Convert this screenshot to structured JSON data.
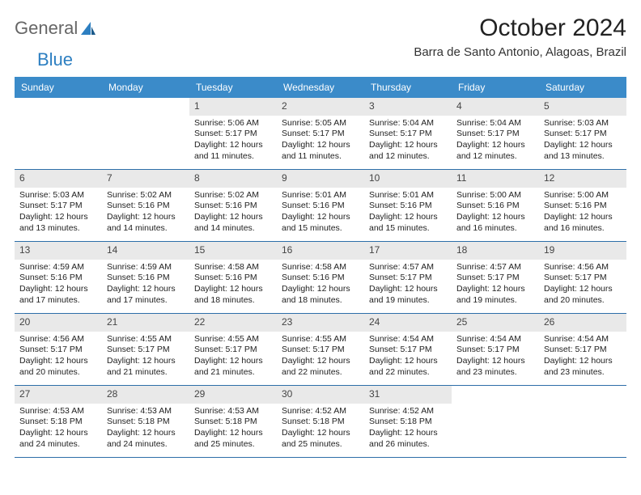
{
  "brand": {
    "part1": "General",
    "part2": "Blue"
  },
  "title": "October 2024",
  "subtitle": "Barra de Santo Antonio, Alagoas, Brazil",
  "colors": {
    "header_bg": "#3b8bc9",
    "header_text": "#ffffff",
    "daynum_bg": "#e9e9e9",
    "daynum_text": "#444444",
    "week_border": "#2d6ea8",
    "logo_gray": "#666666",
    "logo_blue": "#2d7fc1"
  },
  "dow": [
    "Sunday",
    "Monday",
    "Tuesday",
    "Wednesday",
    "Thursday",
    "Friday",
    "Saturday"
  ],
  "weeks": [
    [
      null,
      null,
      {
        "n": "1",
        "sr": "5:06 AM",
        "ss": "5:17 PM",
        "dl": "12 hours and 11 minutes."
      },
      {
        "n": "2",
        "sr": "5:05 AM",
        "ss": "5:17 PM",
        "dl": "12 hours and 11 minutes."
      },
      {
        "n": "3",
        "sr": "5:04 AM",
        "ss": "5:17 PM",
        "dl": "12 hours and 12 minutes."
      },
      {
        "n": "4",
        "sr": "5:04 AM",
        "ss": "5:17 PM",
        "dl": "12 hours and 12 minutes."
      },
      {
        "n": "5",
        "sr": "5:03 AM",
        "ss": "5:17 PM",
        "dl": "12 hours and 13 minutes."
      }
    ],
    [
      {
        "n": "6",
        "sr": "5:03 AM",
        "ss": "5:17 PM",
        "dl": "12 hours and 13 minutes."
      },
      {
        "n": "7",
        "sr": "5:02 AM",
        "ss": "5:16 PM",
        "dl": "12 hours and 14 minutes."
      },
      {
        "n": "8",
        "sr": "5:02 AM",
        "ss": "5:16 PM",
        "dl": "12 hours and 14 minutes."
      },
      {
        "n": "9",
        "sr": "5:01 AM",
        "ss": "5:16 PM",
        "dl": "12 hours and 15 minutes."
      },
      {
        "n": "10",
        "sr": "5:01 AM",
        "ss": "5:16 PM",
        "dl": "12 hours and 15 minutes."
      },
      {
        "n": "11",
        "sr": "5:00 AM",
        "ss": "5:16 PM",
        "dl": "12 hours and 16 minutes."
      },
      {
        "n": "12",
        "sr": "5:00 AM",
        "ss": "5:16 PM",
        "dl": "12 hours and 16 minutes."
      }
    ],
    [
      {
        "n": "13",
        "sr": "4:59 AM",
        "ss": "5:16 PM",
        "dl": "12 hours and 17 minutes."
      },
      {
        "n": "14",
        "sr": "4:59 AM",
        "ss": "5:16 PM",
        "dl": "12 hours and 17 minutes."
      },
      {
        "n": "15",
        "sr": "4:58 AM",
        "ss": "5:16 PM",
        "dl": "12 hours and 18 minutes."
      },
      {
        "n": "16",
        "sr": "4:58 AM",
        "ss": "5:16 PM",
        "dl": "12 hours and 18 minutes."
      },
      {
        "n": "17",
        "sr": "4:57 AM",
        "ss": "5:17 PM",
        "dl": "12 hours and 19 minutes."
      },
      {
        "n": "18",
        "sr": "4:57 AM",
        "ss": "5:17 PM",
        "dl": "12 hours and 19 minutes."
      },
      {
        "n": "19",
        "sr": "4:56 AM",
        "ss": "5:17 PM",
        "dl": "12 hours and 20 minutes."
      }
    ],
    [
      {
        "n": "20",
        "sr": "4:56 AM",
        "ss": "5:17 PM",
        "dl": "12 hours and 20 minutes."
      },
      {
        "n": "21",
        "sr": "4:55 AM",
        "ss": "5:17 PM",
        "dl": "12 hours and 21 minutes."
      },
      {
        "n": "22",
        "sr": "4:55 AM",
        "ss": "5:17 PM",
        "dl": "12 hours and 21 minutes."
      },
      {
        "n": "23",
        "sr": "4:55 AM",
        "ss": "5:17 PM",
        "dl": "12 hours and 22 minutes."
      },
      {
        "n": "24",
        "sr": "4:54 AM",
        "ss": "5:17 PM",
        "dl": "12 hours and 22 minutes."
      },
      {
        "n": "25",
        "sr": "4:54 AM",
        "ss": "5:17 PM",
        "dl": "12 hours and 23 minutes."
      },
      {
        "n": "26",
        "sr": "4:54 AM",
        "ss": "5:17 PM",
        "dl": "12 hours and 23 minutes."
      }
    ],
    [
      {
        "n": "27",
        "sr": "4:53 AM",
        "ss": "5:18 PM",
        "dl": "12 hours and 24 minutes."
      },
      {
        "n": "28",
        "sr": "4:53 AM",
        "ss": "5:18 PM",
        "dl": "12 hours and 24 minutes."
      },
      {
        "n": "29",
        "sr": "4:53 AM",
        "ss": "5:18 PM",
        "dl": "12 hours and 25 minutes."
      },
      {
        "n": "30",
        "sr": "4:52 AM",
        "ss": "5:18 PM",
        "dl": "12 hours and 25 minutes."
      },
      {
        "n": "31",
        "sr": "4:52 AM",
        "ss": "5:18 PM",
        "dl": "12 hours and 26 minutes."
      },
      null,
      null
    ]
  ],
  "labels": {
    "sunrise": "Sunrise: ",
    "sunset": "Sunset: ",
    "daylight": "Daylight: "
  }
}
